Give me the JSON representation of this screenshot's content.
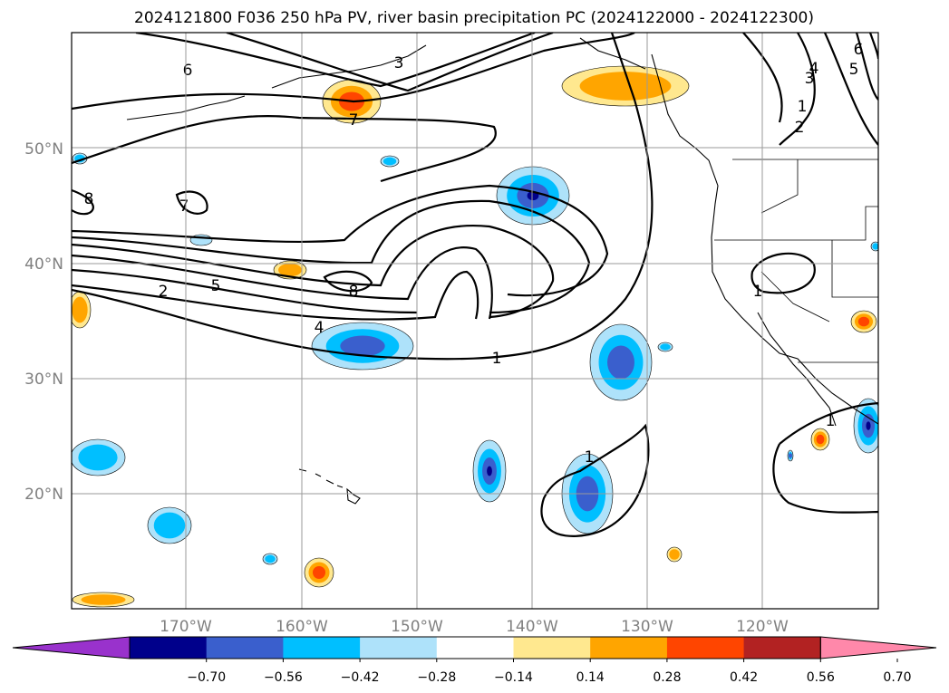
{
  "title": "2024121800 F036 250 hPa PV, river basin precipitation PC (2024122000 - 2024122300)",
  "map": {
    "projection": "Plate Carree",
    "lon_range": [
      "180°",
      "110°W"
    ],
    "lat_range": [
      "10°N",
      "60°N"
    ],
    "gridlines": true,
    "latitude_labels": [
      "20°N",
      "30°N",
      "40°N",
      "50°N"
    ],
    "longitude_labels": [
      "170°W",
      "160°W",
      "150°W",
      "140°W",
      "130°W",
      "120°W"
    ]
  },
  "contours": {
    "field": "250 hPa PV",
    "color": "#000000",
    "labels": [
      "6",
      "3",
      "7",
      "8",
      "7",
      "2",
      "5",
      "8",
      "4",
      "1",
      "1",
      "1",
      "1",
      "1",
      "2",
      "3",
      "4",
      "5",
      "6"
    ]
  },
  "colorbar": {
    "extend": "both",
    "colors": [
      "#9932cc",
      "#00008b",
      "#3a5fcd",
      "#00bfff",
      "#aee2fa",
      "#ffffff",
      "#ffe88f",
      "#ffa500",
      "#ff4500",
      "#b22222",
      "#ff88aa"
    ],
    "tick_labels": [
      "−0.70",
      "−0.56",
      "−0.42",
      "−0.28",
      "−0.14",
      "0.14",
      "0.28",
      "0.42",
      "0.56",
      "0.70"
    ]
  },
  "shading": {
    "negative_colors": [
      "#aee2fa",
      "#00bfff",
      "#3a5fcd",
      "#00008b"
    ],
    "positive_colors": [
      "#ffe88f",
      "#ffa500",
      "#ff4500"
    ]
  }
}
